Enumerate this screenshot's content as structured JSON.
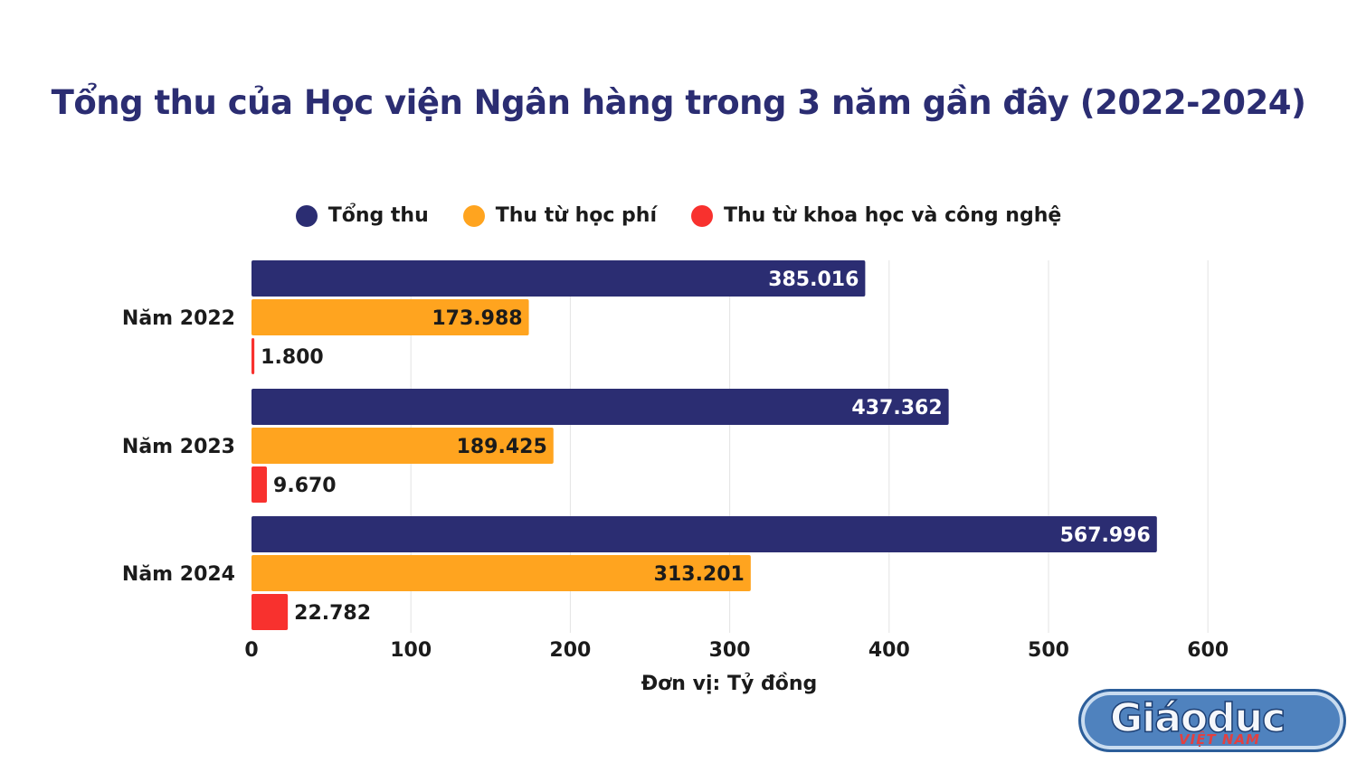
{
  "title": "Tổng thu của Học viện Ngân hàng trong 3 năm gần đây (2022-2024)",
  "colors": {
    "title": "#2b2d72",
    "tong_thu": "#2b2d72",
    "hoc_phi": "#ffa41f",
    "khcn": "#f8312e",
    "grid": "#e3e3e3"
  },
  "logo": {
    "main": "Giáoduc",
    "sub": "VIỆT NAM"
  },
  "chart_data": {
    "type": "bar",
    "orientation": "horizontal",
    "categories": [
      "Năm 2022",
      "Năm 2023",
      "Năm 2024"
    ],
    "series": [
      {
        "name": "Tổng thu",
        "color": "#2b2d72",
        "values": [
          385.016,
          437.362,
          567.996
        ],
        "labels": [
          "385.016",
          "437.362",
          "567.996"
        ],
        "label_position": "inside-end"
      },
      {
        "name": "Thu từ học phí",
        "color": "#ffa41f",
        "values": [
          173.988,
          189.425,
          313.201
        ],
        "labels": [
          "173.988",
          "189.425",
          "313.201"
        ],
        "label_position": "inside-end"
      },
      {
        "name": "Thu từ khoa học và công nghệ",
        "color": "#f8312e",
        "values": [
          1.8,
          9.67,
          22.782
        ],
        "labels": [
          "1.800",
          "9.670",
          "22.782"
        ],
        "label_position": "outside-end"
      }
    ],
    "xlabel": "Đơn vị: Tỷ đồng",
    "xlim": [
      0,
      600
    ],
    "xticks": [
      0,
      100,
      200,
      300,
      400,
      500,
      600
    ],
    "grid": true,
    "legend": "top-center"
  }
}
